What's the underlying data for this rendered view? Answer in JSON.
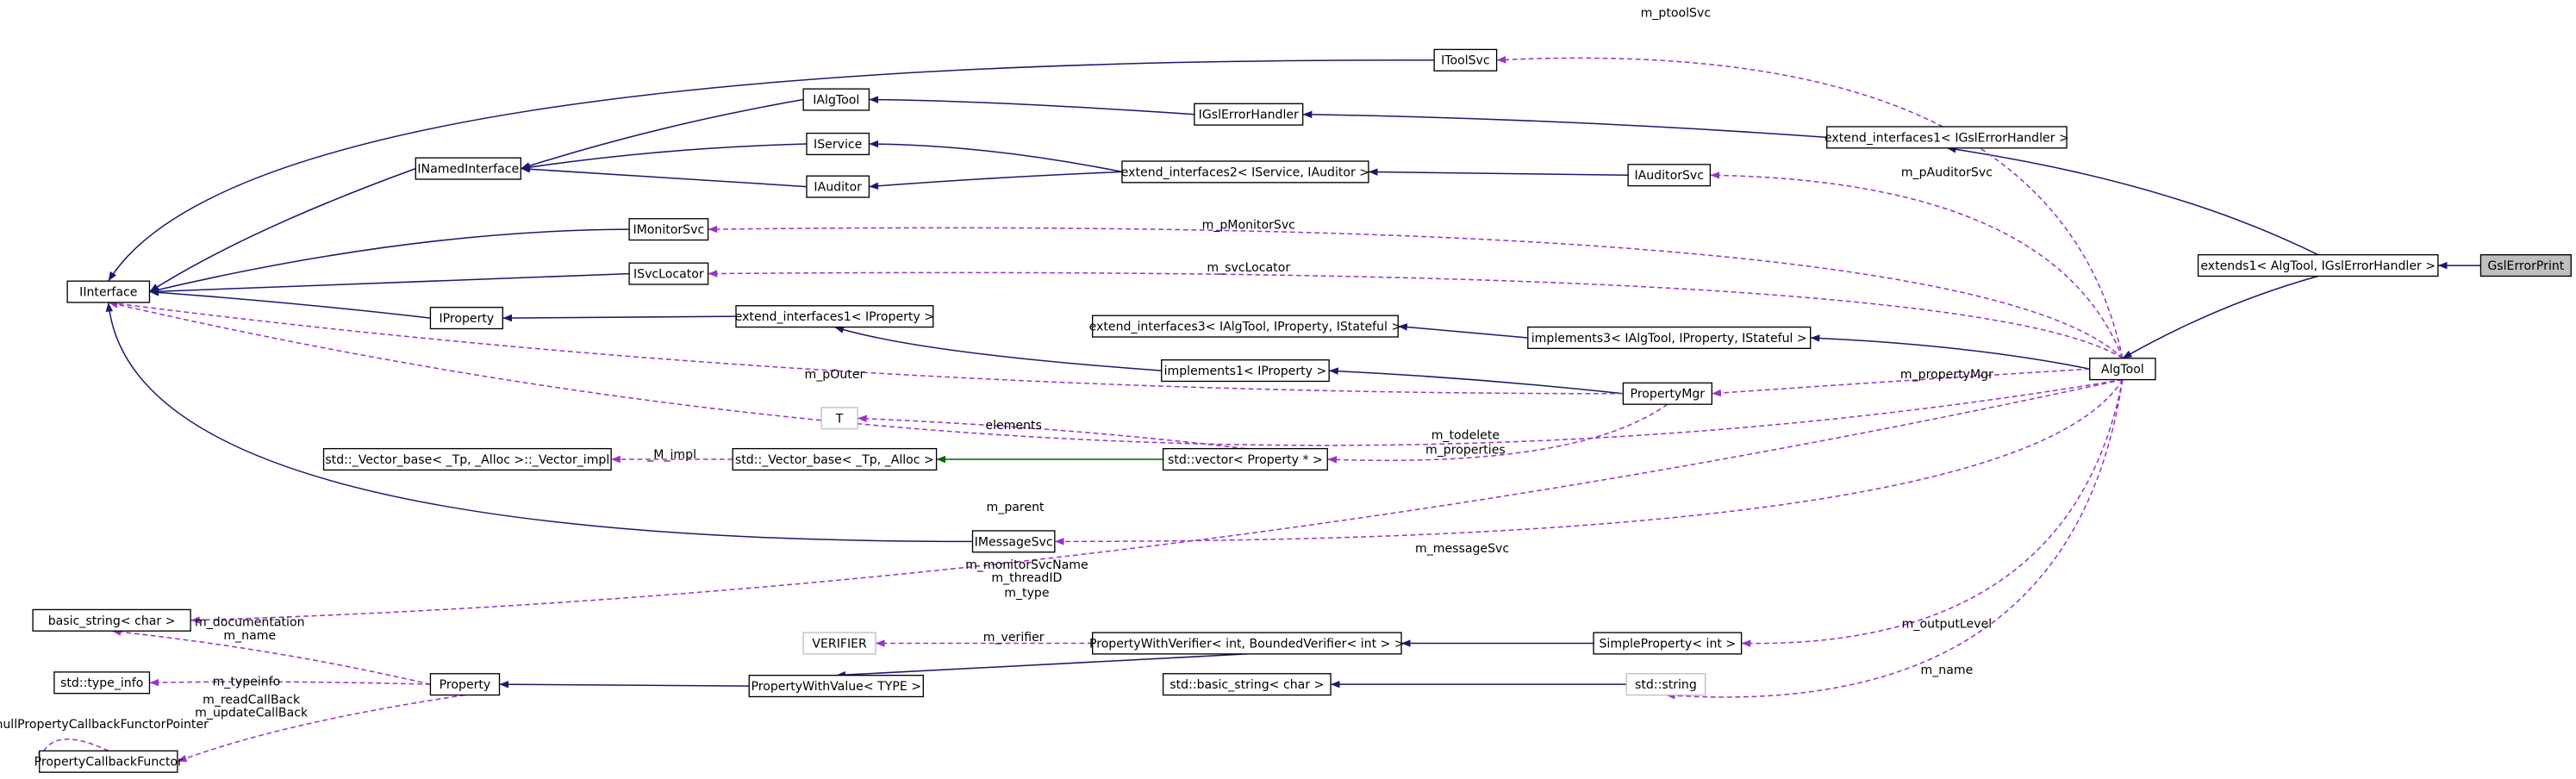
{
  "nodes": [
    {
      "label": "GslErrorPrint"
    },
    {
      "label": "extends1< AlgTool, IGslErrorHandler >"
    },
    {
      "label": "AlgTool"
    },
    {
      "label": "extend_interfaces1< IGslErrorHandler >"
    },
    {
      "label": "IGslErrorHandler"
    },
    {
      "label": "IToolSvc"
    },
    {
      "label": "IAlgTool"
    },
    {
      "label": "IService"
    },
    {
      "label": "IAuditor"
    },
    {
      "label": "INamedInterface"
    },
    {
      "label": "extend_interfaces2< IService, IAuditor >"
    },
    {
      "label": "IAuditorSvc"
    },
    {
      "label": "IMonitorSvc"
    },
    {
      "label": "ISvcLocator"
    },
    {
      "label": "IInterface"
    },
    {
      "label": "IProperty"
    },
    {
      "label": "extend_interfaces1< IProperty >"
    },
    {
      "label": "extend_interfaces3< IAlgTool, IProperty, IStateful >"
    },
    {
      "label": "implements3< IAlgTool, IProperty, IStateful >"
    },
    {
      "label": "implements1< IProperty >"
    },
    {
      "label": "PropertyMgr"
    },
    {
      "label": "T"
    },
    {
      "label": "std::vector< Property * >"
    },
    {
      "label": "std::_Vector_base< _Tp, _Alloc >"
    },
    {
      "label": "std::_Vector_base< _Tp, _Alloc >::_Vector_impl"
    },
    {
      "label": "IMessageSvc"
    },
    {
      "label": "basic_string< char >"
    },
    {
      "label": "std::type_info"
    },
    {
      "label": "Property"
    },
    {
      "label": "PropertyCallbackFunctor"
    },
    {
      "label": "VERIFIER"
    },
    {
      "label": "PropertyWithVerifier< int, BoundedVerifier< int > >"
    },
    {
      "label": "PropertyWithValue< TYPE >"
    },
    {
      "label": "SimpleProperty< int >"
    },
    {
      "label": "std::basic_string< char >"
    },
    {
      "label": "std::string"
    }
  ],
  "edge_labels": [
    "m_ptoolSvc",
    "m_pAuditorSvc",
    "m_pMonitorSvc",
    "m_svcLocator",
    "m_pOuter",
    "m_propertyMgr",
    "elements",
    "m_todelete",
    "m_properties",
    "_M_impl",
    "m_parent",
    "m_messageSvc",
    "m_monitorSvcName",
    "m_threadID",
    "m_type",
    "m_documentation",
    "m_name",
    "m_typeinfo",
    "m_readCallBack",
    "m_updateCallBack",
    "nullPropertyCallbackFunctorPointer",
    "m_verifier",
    "m_outputLevel",
    "m_name"
  ]
}
